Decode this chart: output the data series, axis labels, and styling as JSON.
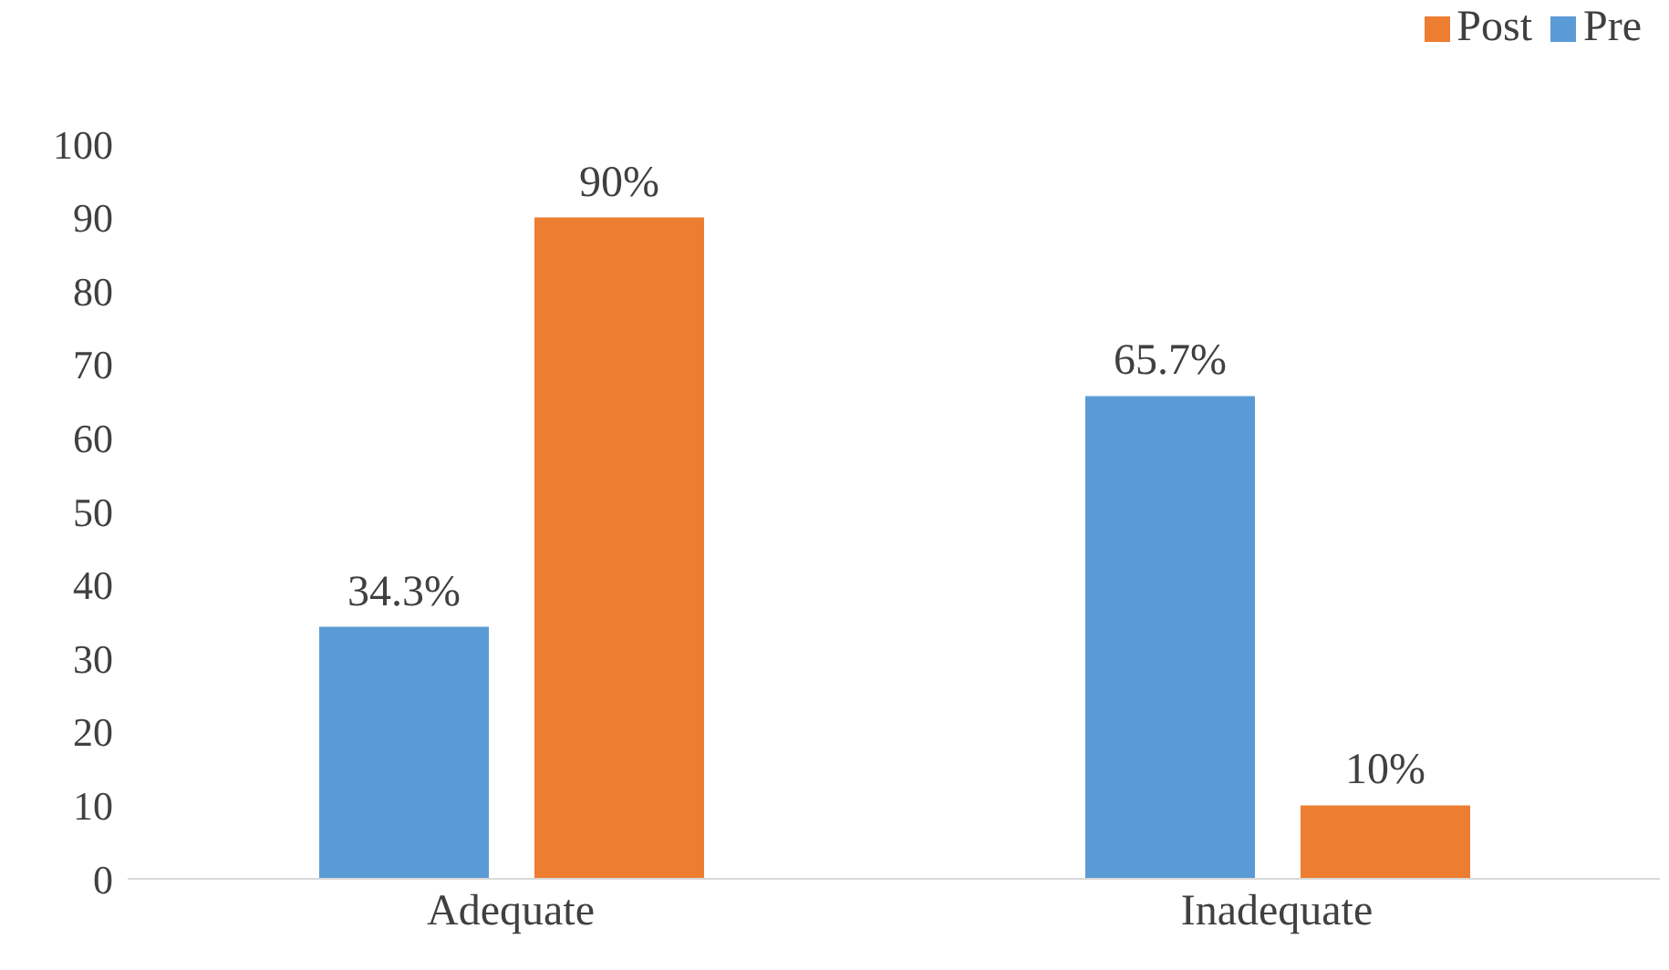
{
  "chart_data": {
    "type": "bar",
    "categories": [
      "Adequate",
      "Inadequate"
    ],
    "series": [
      {
        "name": "Pre",
        "color": "#5b9bd5",
        "values": [
          34.3,
          65.7
        ],
        "value_labels": [
          "34.3%",
          "65.7%"
        ]
      },
      {
        "name": "Post",
        "color": "#ed7d31",
        "values": [
          90,
          10
        ],
        "value_labels": [
          "90%",
          "10%"
        ]
      }
    ],
    "ylim": [
      0,
      100
    ],
    "yticks": [
      0,
      10,
      20,
      30,
      40,
      50,
      60,
      70,
      80,
      90,
      100
    ],
    "grid": false,
    "legend": "top right"
  }
}
